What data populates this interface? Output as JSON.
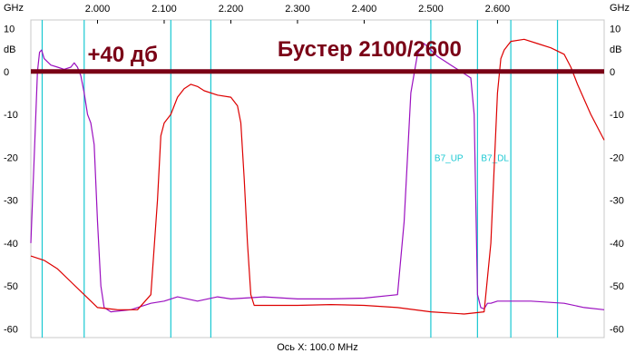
{
  "chart_data": {
    "type": "line",
    "x_unit": "GHz",
    "y_unit": "dB",
    "xlabel": "Ось X: 100.0 MHz",
    "xlim": [
      1.9,
      2.76
    ],
    "ylim": [
      -62,
      12
    ],
    "x_ticks": [
      {
        "value": 2.0,
        "label": "2.000"
      },
      {
        "value": 2.1,
        "label": "2.100"
      },
      {
        "value": 2.2,
        "label": "2.200"
      },
      {
        "value": 2.3,
        "label": "2.300"
      },
      {
        "value": 2.4,
        "label": "2.400"
      },
      {
        "value": 2.5,
        "label": "2.500"
      },
      {
        "value": 2.6,
        "label": "2.600"
      }
    ],
    "y_ticks": [
      {
        "value": 10,
        "label": "10"
      },
      {
        "value": 0,
        "label": "0"
      },
      {
        "value": -10,
        "label": "-10"
      },
      {
        "value": -20,
        "label": "-20"
      },
      {
        "value": -30,
        "label": "-30"
      },
      {
        "value": -40,
        "label": "-40"
      },
      {
        "value": -50,
        "label": "-50"
      },
      {
        "value": -60,
        "label": "-60"
      }
    ],
    "markers": [
      {
        "x": 1.917,
        "label": ""
      },
      {
        "x": 1.98,
        "label": ""
      },
      {
        "x": 2.11,
        "label": ""
      },
      {
        "x": 2.17,
        "label": ""
      },
      {
        "x": 2.5,
        "label": "B7_UP"
      },
      {
        "x": 2.57,
        "label": "B7_DL"
      },
      {
        "x": 2.62,
        "label": ""
      },
      {
        "x": 2.69,
        "label": ""
      }
    ],
    "reference_line": {
      "y": 0,
      "color": "#7a0016"
    },
    "annotations": [
      {
        "text": "+40 дб",
        "x": 1.985,
        "y": 2.3,
        "size": 24
      },
      {
        "text": "Бустер 2100/2600",
        "x": 2.27,
        "y": 3.5,
        "size": 24
      }
    ],
    "series": [
      {
        "name": "",
        "color": "#9b10c0",
        "x": [
          1.9,
          1.905,
          1.91,
          1.913,
          1.916,
          1.92,
          1.93,
          1.94,
          1.95,
          1.96,
          1.965,
          1.97,
          1.975,
          1.98,
          1.985,
          1.99,
          1.995,
          2.0,
          2.005,
          2.01,
          2.02,
          2.05,
          2.08,
          2.1,
          2.12,
          2.15,
          2.18,
          2.2,
          2.25,
          2.3,
          2.35,
          2.4,
          2.45,
          2.46,
          2.47,
          2.48,
          2.49,
          2.5,
          2.51,
          2.52,
          2.53,
          2.54,
          2.55,
          2.56,
          2.565,
          2.57,
          2.575,
          2.58,
          2.585,
          2.59,
          2.6,
          2.65,
          2.7,
          2.73,
          2.76
        ],
        "y": [
          -40,
          -20,
          0,
          4.5,
          5,
          3,
          1.5,
          1,
          0.5,
          1,
          2,
          1,
          -1,
          -5,
          -10,
          -12,
          -17,
          -35,
          -50,
          -55,
          -56,
          -55.5,
          -54,
          -53.5,
          -52.5,
          -53.5,
          -52.5,
          -53,
          -52.5,
          -53,
          -53,
          -52.8,
          -52,
          -35,
          -5,
          4,
          6.5,
          5,
          3.5,
          2.5,
          1.5,
          0.5,
          -0.5,
          -1.5,
          -10,
          -52,
          -55,
          -55.3,
          -54,
          -54,
          -53.5,
          -53.5,
          -54,
          -55,
          -55.5
        ]
      },
      {
        "name": "",
        "color": "#dd0000",
        "x": [
          1.9,
          1.92,
          1.94,
          1.96,
          1.98,
          2.0,
          2.03,
          2.06,
          2.08,
          2.09,
          2.095,
          2.1,
          2.11,
          2.12,
          2.13,
          2.14,
          2.15,
          2.16,
          2.18,
          2.2,
          2.21,
          2.215,
          2.22,
          2.225,
          2.23,
          2.235,
          2.25,
          2.3,
          2.35,
          2.4,
          2.45,
          2.5,
          2.55,
          2.58,
          2.59,
          2.6,
          2.605,
          2.61,
          2.62,
          2.64,
          2.66,
          2.68,
          2.7,
          2.71,
          2.72,
          2.74,
          2.76
        ],
        "y": [
          -43,
          -44,
          -46,
          -49,
          -52,
          -55,
          -55.5,
          -55.5,
          -52,
          -30,
          -15,
          -12,
          -10,
          -6,
          -4,
          -3,
          -3.5,
          -4.5,
          -5.5,
          -6,
          -8,
          -12,
          -25,
          -40,
          -52,
          -54.5,
          -54.5,
          -54.5,
          -54.3,
          -54.5,
          -55,
          -56,
          -56.5,
          -56,
          -40,
          -5,
          3,
          5,
          7,
          7.5,
          6.5,
          5.5,
          4,
          1,
          -3,
          -10,
          -16
        ]
      }
    ]
  }
}
